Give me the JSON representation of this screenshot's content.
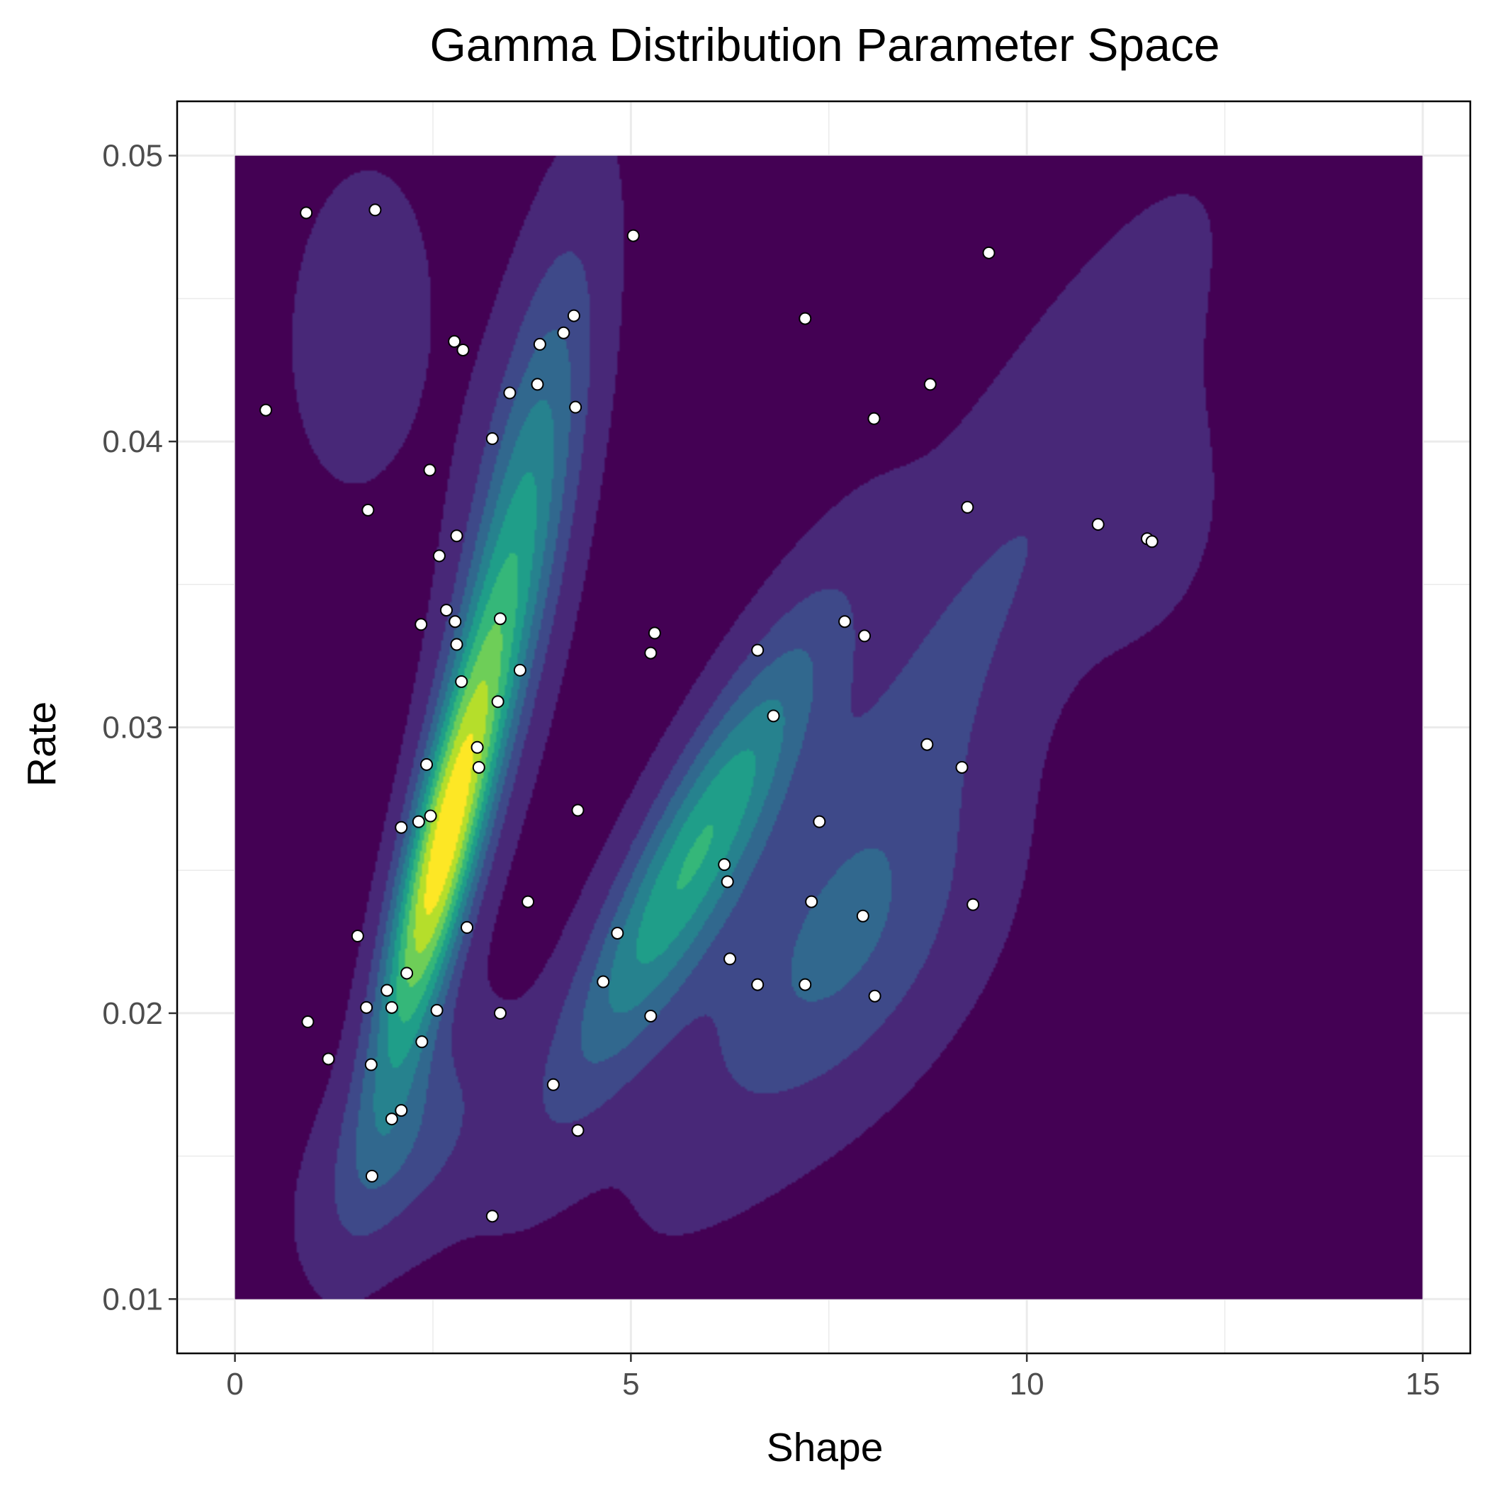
{
  "chart_data": {
    "type": "contour",
    "title": "Gamma Distribution Parameter Space",
    "xlabel": "Shape",
    "ylabel": "Rate",
    "xlim": [
      -0.73,
      15.6
    ],
    "ylim": [
      0.0081,
      0.0519
    ],
    "x_ticks": [
      0,
      5,
      10,
      15
    ],
    "x_tick_labels": [
      "0",
      "5",
      "10",
      "15"
    ],
    "y_ticks": [
      0.01,
      0.02,
      0.03,
      0.04,
      0.05
    ],
    "y_tick_labels": [
      "0.01",
      "0.02",
      "0.03",
      "0.04",
      "0.05"
    ],
    "grid": true,
    "legend": "none",
    "density_extent": {
      "x": [
        0,
        15
      ],
      "y": [
        0.01,
        0.05
      ]
    },
    "contour_colors": [
      "#440154",
      "#482878",
      "#3e4989",
      "#31688e",
      "#26828e",
      "#1f9e89",
      "#35b779",
      "#6ece58",
      "#b5de2b",
      "#fde725"
    ],
    "density_modes": [
      {
        "x": 2.6,
        "y": 0.0255,
        "sx": 0.55,
        "sy": 0.0055,
        "rho": 0.82,
        "w": 1.0
      },
      {
        "x": 3.6,
        "y": 0.037,
        "sx": 0.6,
        "sy": 0.0065,
        "rho": 0.7,
        "w": 0.48
      },
      {
        "x": 5.8,
        "y": 0.0255,
        "sx": 1.1,
        "sy": 0.0055,
        "rho": 0.88,
        "w": 0.62
      },
      {
        "x": 8.8,
        "y": 0.031,
        "sx": 2.1,
        "sy": 0.0105,
        "rho": 0.9,
        "w": 0.18
      },
      {
        "x": 1.6,
        "y": 0.044,
        "sx": 0.8,
        "sy": 0.005,
        "rho": 0.1,
        "w": 0.08
      },
      {
        "x": 11.5,
        "y": 0.037,
        "sx": 0.7,
        "sy": 0.003,
        "rho": 0.2,
        "w": 0.08
      },
      {
        "x": 7.8,
        "y": 0.022,
        "sx": 1.2,
        "sy": 0.004,
        "rho": 0.5,
        "w": 0.2
      },
      {
        "x": 2.2,
        "y": 0.0155,
        "sx": 0.8,
        "sy": 0.0028,
        "rho": 0.5,
        "w": 0.22
      }
    ],
    "points": {
      "x": [
        0.9,
        1.77,
        5.03,
        9.52,
        7.2,
        4.28,
        4.15,
        2.77,
        2.88,
        3.85,
        3.82,
        3.47,
        4.3,
        0.39,
        3.25,
        2.46,
        8.78,
        8.07,
        1.68,
        9.25,
        2.8,
        2.58,
        10.9,
        11.52,
        11.58,
        2.67,
        2.78,
        3.35,
        2.35,
        2.8,
        5.3,
        5.25,
        6.6,
        7.7,
        7.95,
        3.6,
        2.86,
        3.32,
        6.8,
        3.06,
        2.42,
        3.08,
        8.74,
        9.18,
        4.33,
        2.47,
        2.32,
        2.1,
        6.18,
        6.22,
        7.38,
        3.7,
        7.28,
        9.32,
        7.93,
        2.93,
        4.83,
        1.55,
        2.17,
        4.65,
        6.25,
        6.6,
        7.2,
        1.92,
        8.08,
        1.66,
        1.98,
        2.55,
        3.35,
        5.25,
        0.92,
        2.36,
        1.18,
        1.72,
        4.02,
        2.1,
        1.98,
        4.33,
        1.73,
        3.25
      ],
      "y": [
        0.048,
        0.0481,
        0.0472,
        0.0466,
        0.0443,
        0.0444,
        0.0438,
        0.0435,
        0.0432,
        0.0434,
        0.042,
        0.0417,
        0.0412,
        0.0411,
        0.0401,
        0.039,
        0.042,
        0.0408,
        0.0376,
        0.0377,
        0.0367,
        0.036,
        0.0371,
        0.0366,
        0.0365,
        0.0341,
        0.0337,
        0.0338,
        0.0336,
        0.0329,
        0.0333,
        0.0326,
        0.0327,
        0.0337,
        0.0332,
        0.032,
        0.0316,
        0.0309,
        0.0304,
        0.0293,
        0.0287,
        0.0286,
        0.0294,
        0.0286,
        0.0271,
        0.0269,
        0.0267,
        0.0265,
        0.0252,
        0.0246,
        0.0267,
        0.0239,
        0.0239,
        0.0238,
        0.0234,
        0.023,
        0.0228,
        0.0227,
        0.0214,
        0.0211,
        0.0219,
        0.021,
        0.021,
        0.0208,
        0.0206,
        0.0202,
        0.0202,
        0.0201,
        0.02,
        0.0199,
        0.0197,
        0.019,
        0.0184,
        0.0182,
        0.0175,
        0.0166,
        0.0163,
        0.0159,
        0.0143,
        0.0129
      ]
    }
  }
}
